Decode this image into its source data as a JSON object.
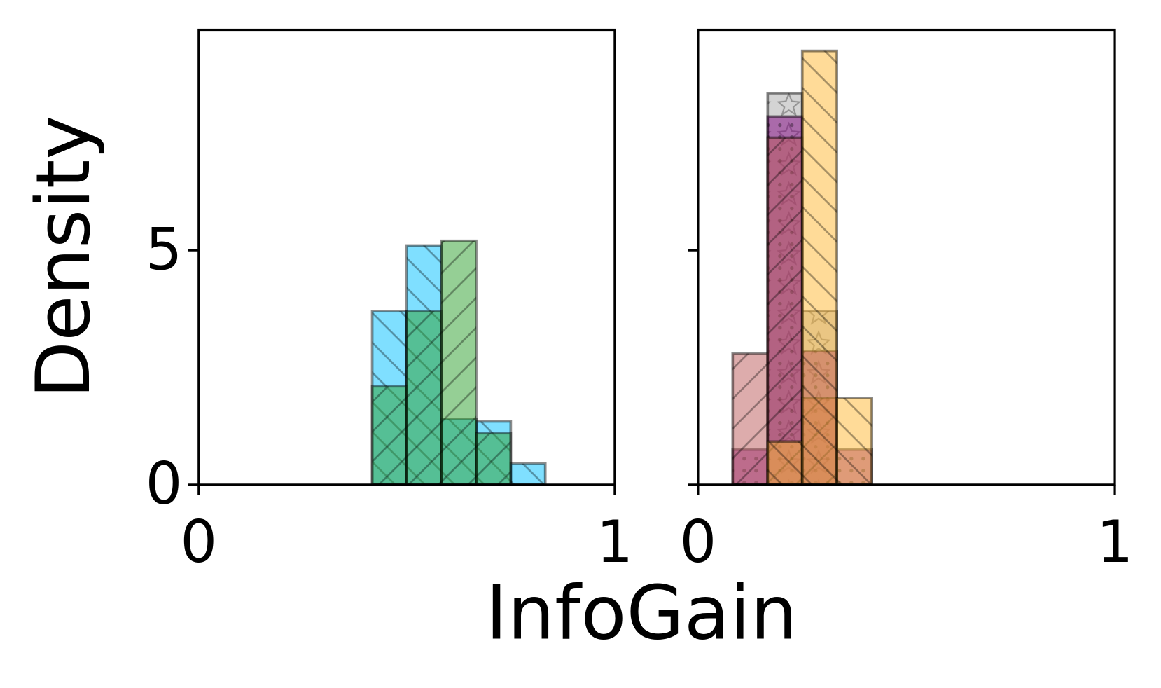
{
  "chart_data": [
    {
      "type": "histogram",
      "ylabel": "Density",
      "bins": [
        0.417,
        0.5,
        0.583,
        0.667,
        0.75,
        0.833
      ],
      "series": [
        {
          "color": "#00bfff",
          "hatch": "back",
          "values": [
            3.7,
            5.1,
            1.4,
            1.35,
            0.45
          ]
        },
        {
          "color": "#2ca02c",
          "hatch": "fwd",
          "values": [
            2.1,
            3.7,
            5.2,
            1.1,
            0
          ]
        }
      ],
      "xlim": [
        0,
        1
      ],
      "ylim": [
        0,
        9.7
      ],
      "xticks": [
        0,
        1
      ],
      "yticks": [
        0,
        5
      ],
      "ytick_labels": true
    },
    {
      "type": "histogram",
      "xlabel": "InfoGain",
      "bins": [
        0.083,
        0.167,
        0.25,
        0.333,
        0.417
      ],
      "series": [
        {
          "color": "#a9a9a9",
          "hatch": "star",
          "values": [
            0,
            8.35,
            3.7,
            0
          ]
        },
        {
          "color": "#800080",
          "hatch": "dot",
          "values": [
            0.75,
            7.85,
            2.85,
            0.75
          ]
        },
        {
          "color": "#bc5a5a",
          "hatch": "fwd",
          "values": [
            2.8,
            7.4,
            1.85,
            0
          ]
        },
        {
          "color": "#ffb732",
          "hatch": "back",
          "values": [
            0,
            0.92,
            9.25,
            1.85
          ]
        }
      ],
      "xlim": [
        0,
        1
      ],
      "ylim": [
        0,
        9.7
      ],
      "xticks": [
        0,
        1
      ],
      "yticks": [
        0,
        5
      ],
      "ytick_labels": false
    }
  ]
}
